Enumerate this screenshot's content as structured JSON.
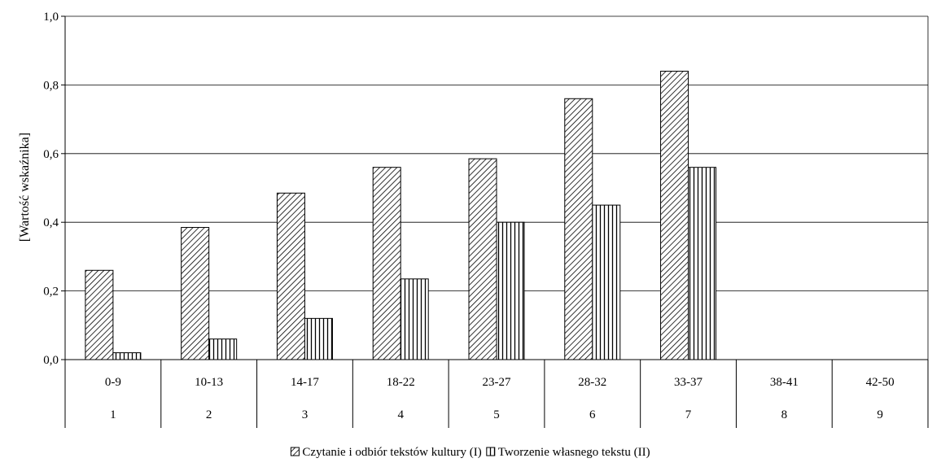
{
  "chart_data": {
    "type": "bar",
    "ylabel": "[Wartość wskaźnika]",
    "ylim": [
      0,
      1.0
    ],
    "y_ticks": [
      "0,0",
      "0,2",
      "0,4",
      "0,6",
      "0,8",
      "1,0"
    ],
    "categories": [
      "0-9",
      "10-13",
      "14-17",
      "18-22",
      "23-27",
      "28-32",
      "33-37",
      "38-41",
      "42-50"
    ],
    "category_numbers": [
      "1",
      "2",
      "3",
      "4",
      "5",
      "6",
      "7",
      "8",
      "9"
    ],
    "series": [
      {
        "name": "Czytanie i odbiór tekstów kultury (I)",
        "pattern": "diagonal-hatch",
        "values": [
          0.26,
          0.385,
          0.485,
          0.56,
          0.585,
          0.76,
          0.84,
          null,
          null
        ]
      },
      {
        "name": "Tworzenie własnego tekstu (II)",
        "pattern": "vertical-hatch",
        "values": [
          0.02,
          0.06,
          0.12,
          0.235,
          0.4,
          0.45,
          0.56,
          null,
          null
        ]
      }
    ],
    "grid": true,
    "legend_position": "bottom",
    "colors": {
      "bar_fill": "#ffffff",
      "hatch": "#000000",
      "grid": "#000000"
    }
  }
}
